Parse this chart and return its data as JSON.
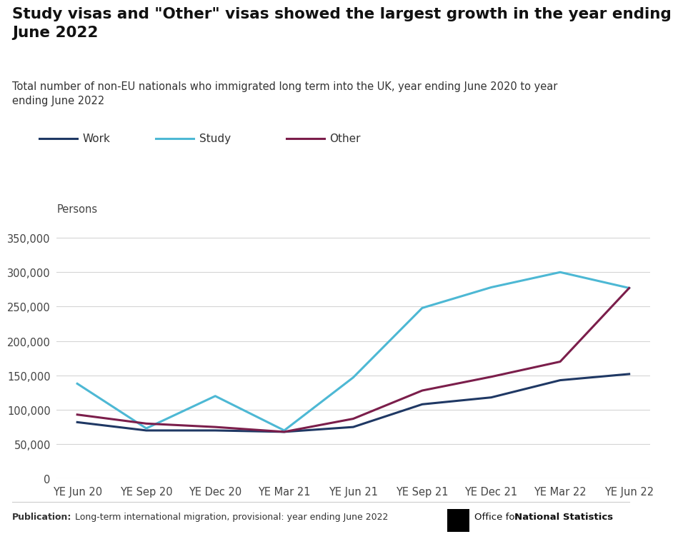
{
  "title": "Study visas and \"Other\" visas showed the largest growth in the year ending\nJune 2022",
  "subtitle": "Total number of non-EU nationals who immigrated long term into the UK, year ending June 2020 to year\nending June 2022",
  "ylabel": "Persons",
  "x_labels": [
    "YE Jun 20",
    "YE Sep 20",
    "YE Dec 20",
    "YE Mar 21",
    "YE Jun 21",
    "YE Sep 21",
    "YE Dec 21",
    "YE Mar 22",
    "YE Jun 22"
  ],
  "work": [
    82000,
    70000,
    70000,
    68000,
    75000,
    108000,
    118000,
    143000,
    152000
  ],
  "study": [
    138000,
    73000,
    120000,
    70000,
    147000,
    248000,
    278000,
    300000,
    277000
  ],
  "other": [
    93000,
    80000,
    75000,
    68000,
    87000,
    128000,
    148000,
    170000,
    277000
  ],
  "work_color": "#1f3864",
  "study_color": "#4db8d4",
  "other_color": "#7b1e4b",
  "ylim": [
    0,
    375000
  ],
  "yticks": [
    0,
    50000,
    100000,
    150000,
    200000,
    250000,
    300000,
    350000
  ],
  "publication_bold": "Publication:",
  "publication_rest": " Long-term international migration, provisional: year ending June 2022",
  "ons_text": " Office for ",
  "ons_bold": "National Statistics",
  "background_color": "#ffffff",
  "grid_color": "#d5d5d5"
}
